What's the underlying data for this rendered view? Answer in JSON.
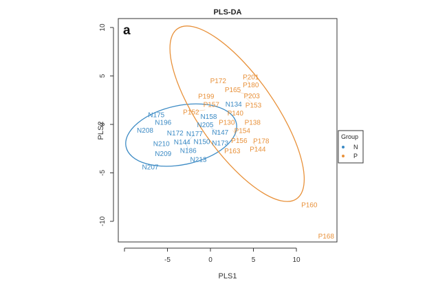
{
  "chart_data": {
    "type": "scatter",
    "title": "PLS-DA",
    "panel_label": "a",
    "xlabel": "PLS1",
    "ylabel": "PLS2",
    "xlim": [
      -10,
      14
    ],
    "ylim": [
      -11.5,
      10.5
    ],
    "xticks": [
      -10,
      -5,
      0,
      5,
      10
    ],
    "xtick_labels": [
      "",
      "-5",
      "0",
      "5",
      "10"
    ],
    "yticks": [
      -10,
      -5,
      0,
      5,
      10
    ],
    "ytick_labels": [
      "-10",
      "-5",
      "0",
      "5",
      "10"
    ],
    "grid": false,
    "legend": {
      "title": "Group",
      "placement": "right",
      "entries": [
        "N",
        "P"
      ]
    },
    "colors": {
      "N": "#3b8ac4",
      "P": "#e8913a"
    },
    "ellipses": [
      {
        "group": "N",
        "center": [
          -3.4,
          -1.1
        ]
      },
      {
        "group": "P",
        "center": [
          3.1,
          1.1
        ]
      }
    ],
    "series": [
      {
        "name": "N",
        "points": [
          {
            "label": "N175",
            "x": -6.3,
            "y": 1.0
          },
          {
            "label": "N196",
            "x": -5.5,
            "y": 0.2
          },
          {
            "label": "N208",
            "x": -7.6,
            "y": -0.6
          },
          {
            "label": "N172",
            "x": -4.1,
            "y": -0.9
          },
          {
            "label": "N144",
            "x": -3.3,
            "y": -1.3
          },
          {
            "label": "N186",
            "x": -2.9,
            "y": -1.7
          },
          {
            "label": "N210",
            "x": -5.7,
            "y": -2.0
          },
          {
            "label": "N177",
            "x": -2.9,
            "y": -2.1
          },
          {
            "label": "N150",
            "x": -1.0,
            "y": -2.1
          },
          {
            "label": "N173",
            "x": 0.9,
            "y": -1.9
          },
          {
            "label": "N209",
            "x": -5.5,
            "y": -3.0
          },
          {
            "label": "N213",
            "x": -1.4,
            "y": -3.1
          },
          {
            "label": "N207",
            "x": -7.0,
            "y": -4.4
          },
          {
            "label": "N158",
            "x": -0.2,
            "y": 0.8
          },
          {
            "label": "N205",
            "x": -0.6,
            "y": 0.3
          },
          {
            "label": "N147",
            "x": 0.1,
            "y": -0.4
          },
          {
            "label": "N134",
            "x": 2.7,
            "y": 2.1
          }
        ]
      },
      {
        "name": "P",
        "points": [
          {
            "label": "P172",
            "x": 0.9,
            "y": 4.5
          },
          {
            "label": "P201",
            "x": 4.7,
            "y": 4.9
          },
          {
            "label": "P180",
            "x": 4.1,
            "y": 4.8
          },
          {
            "label": "P165",
            "x": 2.6,
            "y": 4.1
          },
          {
            "label": "P203",
            "x": 3.0,
            "y": 3.4
          },
          {
            "label": "P153",
            "x": 4.1,
            "y": 2.8
          },
          {
            "label": "P199",
            "x": -0.5,
            "y": 2.9
          },
          {
            "label": "P157",
            "x": 0.1,
            "y": 2.4
          },
          {
            "label": "P152",
            "x": -0.6,
            "y": 1.5
          },
          {
            "label": "P140",
            "x": 2.9,
            "y": 1.5
          },
          {
            "label": "P130",
            "x": 1.9,
            "y": 0.2
          },
          {
            "label": "P138",
            "x": 4.9,
            "y": 0.2
          },
          {
            "label": "P154",
            "x": 3.7,
            "y": -0.3
          },
          {
            "label": "P156",
            "x": 2.6,
            "y": -0.6
          },
          {
            "label": "P163",
            "x": 2.2,
            "y": -2.5
          },
          {
            "label": "P178",
            "x": 5.9,
            "y": -1.7
          },
          {
            "label": "P144",
            "x": 4.9,
            "y": -1.8
          },
          {
            "label": "P160",
            "x": 11.5,
            "y": -8.3
          },
          {
            "label": "P168",
            "x": 13.8,
            "y": -11.3
          }
        ]
      }
    ]
  }
}
